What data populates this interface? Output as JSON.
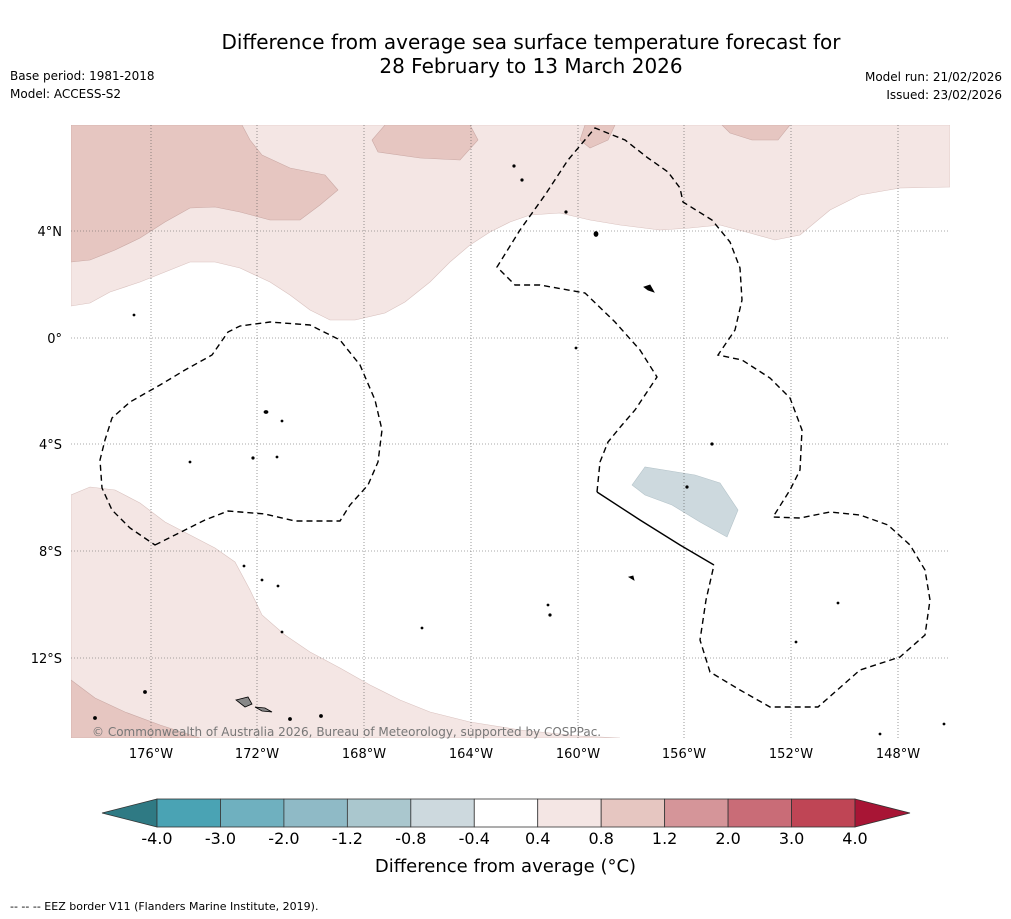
{
  "title": {
    "line1": "Difference from average sea surface temperature forecast for",
    "line2": "28 February to 13 March 2026"
  },
  "meta_left": {
    "base_period": "Base period: 1981-2018",
    "model": "Model: ACCESS-S2"
  },
  "meta_right": {
    "model_run": "Model run: 21/02/2026",
    "issued": "Issued: 23/02/2026"
  },
  "map": {
    "lat_labels": [
      "4°N",
      "0°",
      "4°S",
      "8°S",
      "12°S"
    ],
    "lon_labels": [
      "176°W",
      "172°W",
      "168°W",
      "164°W",
      "160°W",
      "156°W",
      "152°W",
      "148°W"
    ],
    "copyright": "© Commonwealth of Australia 2026, Bureau of Meteorology, supported by COSPPac."
  },
  "colorbar": {
    "ticks": [
      "-4.0",
      "-3.0",
      "-2.0",
      "-1.2",
      "-0.8",
      "-0.4",
      "0.4",
      "0.8",
      "1.2",
      "2.0",
      "3.0",
      "4.0"
    ],
    "colors": {
      "under": "#2f7a84",
      "bins": [
        "#4aa3b4",
        "#6fb0bf",
        "#8fbac6",
        "#aac7ce",
        "#cdd9de",
        "#ffffff",
        "#f4e6e4",
        "#e6c6c1",
        "#d59599",
        "#c96c77",
        "#bf4555"
      ],
      "over": "#a81535"
    },
    "title": "Difference from average (°C)"
  },
  "footer": "--  --  -- EEZ border V11 (Flanders Marine Institute, 2019)."
}
